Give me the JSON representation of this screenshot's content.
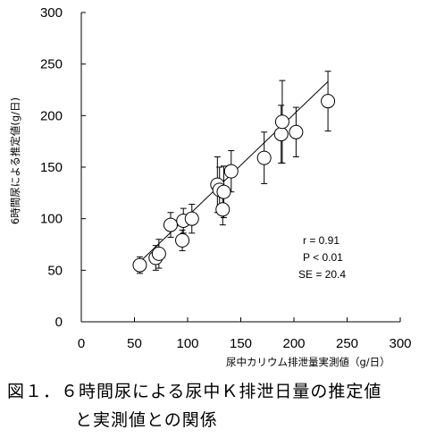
{
  "chart_data": {
    "type": "scatter",
    "xlabel": "尿中カリウム排泄量実測値（g/日）",
    "ylabel": "6時間尿による推定値(g/日)",
    "xlim": [
      0,
      300
    ],
    "ylim": [
      0,
      300
    ],
    "x_ticks": [
      "0",
      "50",
      "100",
      "150",
      "200",
      "250",
      "300"
    ],
    "y_ticks": [
      "0",
      "50",
      "100",
      "150",
      "200",
      "250",
      "300"
    ],
    "points": [
      {
        "x": 55,
        "y": 55,
        "err": 8
      },
      {
        "x": 70,
        "y": 62,
        "err": 12
      },
      {
        "x": 73,
        "y": 66,
        "err": 14
      },
      {
        "x": 84,
        "y": 94,
        "err": 12
      },
      {
        "x": 95,
        "y": 79,
        "err": 10
      },
      {
        "x": 96,
        "y": 98,
        "err": 12
      },
      {
        "x": 104,
        "y": 100,
        "err": 14
      },
      {
        "x": 128,
        "y": 133,
        "err": 27
      },
      {
        "x": 130,
        "y": 128,
        "err": 22
      },
      {
        "x": 133,
        "y": 109,
        "err": 15
      },
      {
        "x": 134,
        "y": 126,
        "err": 25
      },
      {
        "x": 141,
        "y": 146,
        "err": 20
      },
      {
        "x": 172,
        "y": 159,
        "err": 25
      },
      {
        "x": 188,
        "y": 182,
        "err": 28
      },
      {
        "x": 189,
        "y": 194,
        "err": 40
      },
      {
        "x": 202,
        "y": 184,
        "err": 24
      },
      {
        "x": 232,
        "y": 214,
        "err": 29
      }
    ],
    "regression": {
      "x": [
        55,
        232
      ],
      "y": [
        58,
        233
      ]
    },
    "stats": [
      "r = 0.91",
      "P < 0.01",
      "SE = 20.4"
    ],
    "grid": false
  },
  "caption": {
    "line1": "図１．６時間尿による尿中Ｋ排泄日量の推定値",
    "line2": "と実測値との関係"
  }
}
